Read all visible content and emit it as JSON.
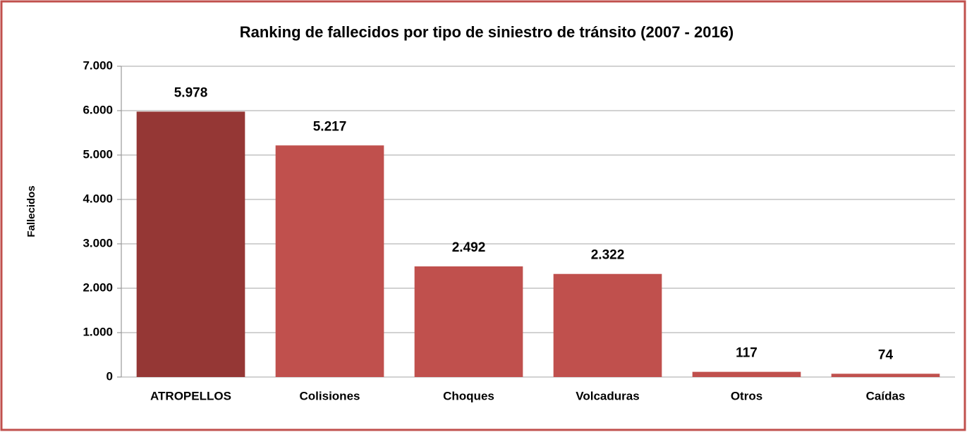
{
  "chart_data": {
    "type": "bar",
    "title": "Ranking de fallecidos por tipo de siniestro de tránsito (2007 - 2016)",
    "y_label": "Fallecidos",
    "categories": [
      "ATROPELLOS",
      "Colisiones",
      "Choques",
      "Volcaduras",
      "Otros",
      "Caídas"
    ],
    "values": [
      5978,
      5217,
      2492,
      2322,
      117,
      74
    ],
    "value_labels": [
      "5.978",
      "5.217",
      "2.492",
      "2.322",
      "117",
      "74"
    ],
    "colors": [
      "#953735",
      "#c0504d",
      "#c0504d",
      "#c0504d",
      "#c0504d",
      "#c0504d"
    ],
    "ylim": [
      0,
      7000
    ],
    "yticks": [
      0,
      {
        "value": 1000,
        "label": "1.000"
      },
      {
        "value": 2000,
        "label": "2.000"
      },
      {
        "value": 3000,
        "label": "3.000"
      },
      {
        "value": 4000,
        "label": "4.000"
      },
      {
        "value": 5000,
        "label": "5.000"
      },
      {
        "value": 6000,
        "label": "6.000"
      },
      {
        "value": 7000,
        "label": "7.000"
      }
    ],
    "grid": true
  }
}
